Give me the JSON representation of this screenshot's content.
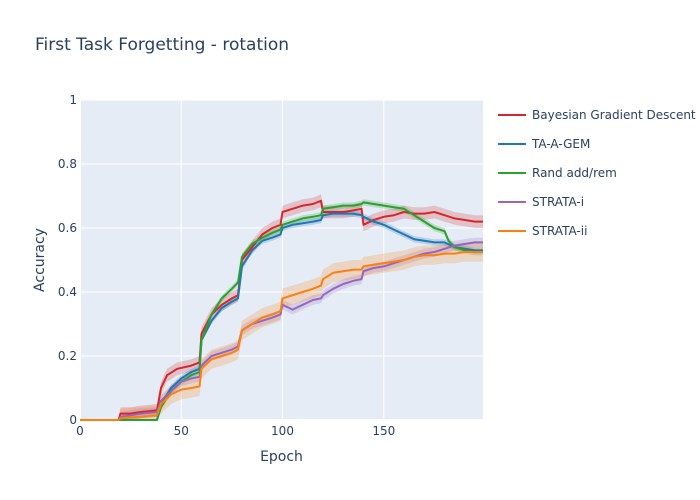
{
  "chart_data": {
    "type": "line",
    "title": "First Task Forgetting - rotation",
    "xlabel": "Epoch",
    "ylabel": "Accuracy",
    "xlim": [
      0,
      199
    ],
    "ylim": [
      0,
      1
    ],
    "x_ticks": [
      0,
      50,
      100,
      150
    ],
    "x_tick_labels": [
      "0",
      "50",
      "100",
      "150"
    ],
    "y_ticks": [
      0,
      0.2,
      0.4,
      0.6,
      0.8,
      1
    ],
    "y_tick_labels": [
      "0",
      "0.2",
      "0.4",
      "0.6",
      "0.8",
      "1"
    ],
    "grid": true,
    "legend_position": "right",
    "plot_background": "#e5ecf6",
    "series": [
      {
        "name": "Bayesian Gradient Descent",
        "color": "#d62728",
        "band": 0.02,
        "points": [
          [
            0,
            0
          ],
          [
            19,
            0
          ],
          [
            20,
            0.02
          ],
          [
            25,
            0.02
          ],
          [
            30,
            0.025
          ],
          [
            38,
            0.03
          ],
          [
            40,
            0.1
          ],
          [
            43,
            0.14
          ],
          [
            48,
            0.16
          ],
          [
            55,
            0.17
          ],
          [
            59,
            0.18
          ],
          [
            60,
            0.27
          ],
          [
            65,
            0.33
          ],
          [
            70,
            0.36
          ],
          [
            75,
            0.38
          ],
          [
            78,
            0.39
          ],
          [
            80,
            0.5
          ],
          [
            85,
            0.54
          ],
          [
            90,
            0.58
          ],
          [
            95,
            0.6
          ],
          [
            99,
            0.61
          ],
          [
            100,
            0.65
          ],
          [
            105,
            0.66
          ],
          [
            110,
            0.67
          ],
          [
            115,
            0.675
          ],
          [
            119,
            0.685
          ],
          [
            120,
            0.65
          ],
          [
            125,
            0.65
          ],
          [
            130,
            0.65
          ],
          [
            135,
            0.655
          ],
          [
            139,
            0.66
          ],
          [
            140,
            0.61
          ],
          [
            145,
            0.625
          ],
          [
            150,
            0.635
          ],
          [
            155,
            0.64
          ],
          [
            160,
            0.65
          ],
          [
            165,
            0.645
          ],
          [
            170,
            0.645
          ],
          [
            175,
            0.65
          ],
          [
            180,
            0.64
          ],
          [
            185,
            0.63
          ],
          [
            190,
            0.625
          ],
          [
            195,
            0.62
          ],
          [
            199,
            0.62
          ]
        ]
      },
      {
        "name": "TA-A-GEM",
        "color": "#1f77b4",
        "band": 0.01,
        "points": [
          [
            0,
            0
          ],
          [
            38,
            0
          ],
          [
            40,
            0.05
          ],
          [
            45,
            0.1
          ],
          [
            50,
            0.13
          ],
          [
            55,
            0.15
          ],
          [
            59,
            0.16
          ],
          [
            60,
            0.25
          ],
          [
            65,
            0.31
          ],
          [
            70,
            0.35
          ],
          [
            75,
            0.37
          ],
          [
            78,
            0.38
          ],
          [
            80,
            0.48
          ],
          [
            85,
            0.53
          ],
          [
            90,
            0.56
          ],
          [
            95,
            0.57
          ],
          [
            99,
            0.58
          ],
          [
            100,
            0.6
          ],
          [
            105,
            0.61
          ],
          [
            110,
            0.615
          ],
          [
            115,
            0.62
          ],
          [
            119,
            0.625
          ],
          [
            120,
            0.64
          ],
          [
            125,
            0.645
          ],
          [
            130,
            0.645
          ],
          [
            135,
            0.645
          ],
          [
            139,
            0.64
          ],
          [
            140,
            0.635
          ],
          [
            145,
            0.62
          ],
          [
            150,
            0.61
          ],
          [
            155,
            0.595
          ],
          [
            160,
            0.58
          ],
          [
            165,
            0.565
          ],
          [
            170,
            0.56
          ],
          [
            175,
            0.555
          ],
          [
            180,
            0.555
          ],
          [
            185,
            0.54
          ],
          [
            190,
            0.535
          ],
          [
            195,
            0.53
          ],
          [
            199,
            0.53
          ]
        ]
      },
      {
        "name": "Rand add/rem",
        "color": "#2ca02c",
        "band": 0.01,
        "points": [
          [
            0,
            0
          ],
          [
            38,
            0
          ],
          [
            40,
            0.04
          ],
          [
            45,
            0.09
          ],
          [
            50,
            0.12
          ],
          [
            55,
            0.14
          ],
          [
            59,
            0.15
          ],
          [
            60,
            0.25
          ],
          [
            65,
            0.33
          ],
          [
            70,
            0.38
          ],
          [
            75,
            0.41
          ],
          [
            78,
            0.43
          ],
          [
            80,
            0.51
          ],
          [
            85,
            0.55
          ],
          [
            90,
            0.57
          ],
          [
            95,
            0.585
          ],
          [
            99,
            0.595
          ],
          [
            100,
            0.61
          ],
          [
            105,
            0.62
          ],
          [
            110,
            0.63
          ],
          [
            115,
            0.635
          ],
          [
            119,
            0.64
          ],
          [
            120,
            0.66
          ],
          [
            125,
            0.665
          ],
          [
            130,
            0.67
          ],
          [
            135,
            0.67
          ],
          [
            139,
            0.675
          ],
          [
            140,
            0.68
          ],
          [
            145,
            0.675
          ],
          [
            150,
            0.67
          ],
          [
            155,
            0.665
          ],
          [
            160,
            0.66
          ],
          [
            165,
            0.64
          ],
          [
            170,
            0.62
          ],
          [
            175,
            0.6
          ],
          [
            180,
            0.59
          ],
          [
            182,
            0.56
          ],
          [
            185,
            0.54
          ],
          [
            190,
            0.53
          ],
          [
            195,
            0.525
          ],
          [
            199,
            0.525
          ]
        ]
      },
      {
        "name": "STRATA-i",
        "color": "#9467bd",
        "band": 0.015,
        "points": [
          [
            0,
            0
          ],
          [
            19,
            0
          ],
          [
            20,
            0.01
          ],
          [
            25,
            0.015
          ],
          [
            30,
            0.02
          ],
          [
            38,
            0.025
          ],
          [
            40,
            0.06
          ],
          [
            45,
            0.09
          ],
          [
            50,
            0.12
          ],
          [
            55,
            0.13
          ],
          [
            59,
            0.135
          ],
          [
            60,
            0.17
          ],
          [
            65,
            0.2
          ],
          [
            70,
            0.21
          ],
          [
            75,
            0.22
          ],
          [
            78,
            0.23
          ],
          [
            80,
            0.28
          ],
          [
            85,
            0.3
          ],
          [
            90,
            0.31
          ],
          [
            95,
            0.32
          ],
          [
            99,
            0.33
          ],
          [
            100,
            0.36
          ],
          [
            105,
            0.345
          ],
          [
            110,
            0.36
          ],
          [
            115,
            0.375
          ],
          [
            119,
            0.38
          ],
          [
            120,
            0.39
          ],
          [
            125,
            0.41
          ],
          [
            130,
            0.425
          ],
          [
            135,
            0.435
          ],
          [
            139,
            0.44
          ],
          [
            140,
            0.465
          ],
          [
            145,
            0.475
          ],
          [
            150,
            0.48
          ],
          [
            155,
            0.49
          ],
          [
            160,
            0.5
          ],
          [
            165,
            0.51
          ],
          [
            170,
            0.52
          ],
          [
            175,
            0.525
          ],
          [
            180,
            0.535
          ],
          [
            185,
            0.545
          ],
          [
            190,
            0.55
          ],
          [
            195,
            0.555
          ],
          [
            199,
            0.555
          ]
        ]
      },
      {
        "name": "STRATA-ii",
        "color": "#ff7f0e",
        "band": 0.03,
        "points": [
          [
            0,
            0
          ],
          [
            19,
            0
          ],
          [
            20,
            0.005
          ],
          [
            25,
            0.008
          ],
          [
            30,
            0.01
          ],
          [
            38,
            0.015
          ],
          [
            40,
            0.05
          ],
          [
            45,
            0.08
          ],
          [
            50,
            0.095
          ],
          [
            55,
            0.1
          ],
          [
            59,
            0.105
          ],
          [
            60,
            0.16
          ],
          [
            65,
            0.19
          ],
          [
            70,
            0.2
          ],
          [
            75,
            0.21
          ],
          [
            78,
            0.22
          ],
          [
            80,
            0.28
          ],
          [
            85,
            0.3
          ],
          [
            90,
            0.32
          ],
          [
            95,
            0.33
          ],
          [
            99,
            0.34
          ],
          [
            100,
            0.38
          ],
          [
            105,
            0.39
          ],
          [
            110,
            0.4
          ],
          [
            115,
            0.41
          ],
          [
            119,
            0.42
          ],
          [
            120,
            0.44
          ],
          [
            125,
            0.46
          ],
          [
            130,
            0.465
          ],
          [
            135,
            0.47
          ],
          [
            139,
            0.47
          ],
          [
            140,
            0.48
          ],
          [
            145,
            0.485
          ],
          [
            150,
            0.49
          ],
          [
            155,
            0.495
          ],
          [
            160,
            0.5
          ],
          [
            165,
            0.51
          ],
          [
            170,
            0.515
          ],
          [
            175,
            0.515
          ],
          [
            180,
            0.52
          ],
          [
            185,
            0.52
          ],
          [
            190,
            0.525
          ],
          [
            195,
            0.525
          ],
          [
            199,
            0.525
          ]
        ]
      }
    ]
  }
}
